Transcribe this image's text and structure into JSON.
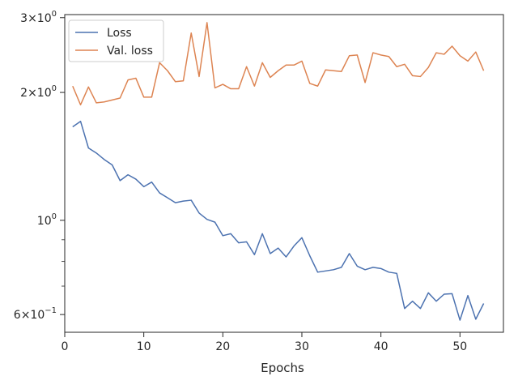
{
  "chart_data": {
    "type": "line",
    "title": "",
    "xlabel": "Epochs",
    "ylabel": "",
    "yscale": "log",
    "xlim": [
      0,
      55.5
    ],
    "ylim": [
      0.545,
      3.05
    ],
    "x_ticks": [
      0,
      10,
      20,
      30,
      40,
      50
    ],
    "y_ticks": [
      {
        "value": 0.6,
        "base": "6",
        "exp": "−1"
      },
      {
        "value": 1.0,
        "base": "10",
        "exp": "0"
      },
      {
        "value": 2.0,
        "base": "2",
        "exp": "0"
      },
      {
        "value": 3.0,
        "base": "3",
        "exp": "0"
      }
    ],
    "grid": false,
    "legend": {
      "position": "top-left"
    },
    "x": [
      1,
      2,
      3,
      4,
      5,
      6,
      7,
      8,
      9,
      10,
      11,
      12,
      13,
      14,
      15,
      16,
      17,
      18,
      19,
      20,
      21,
      22,
      23,
      24,
      25,
      26,
      27,
      28,
      29,
      30,
      31,
      32,
      33,
      34,
      35,
      36,
      37,
      38,
      39,
      40,
      41,
      42,
      43,
      44,
      45,
      46,
      47,
      48,
      49,
      50,
      51,
      52,
      53
    ],
    "series": [
      {
        "name": "Loss",
        "color": "#4c72b0",
        "values": [
          1.66,
          1.71,
          1.48,
          1.44,
          1.39,
          1.35,
          1.24,
          1.28,
          1.25,
          1.2,
          1.23,
          1.16,
          1.13,
          1.1,
          1.11,
          1.115,
          1.04,
          1.005,
          0.99,
          0.92,
          0.93,
          0.885,
          0.89,
          0.83,
          0.93,
          0.835,
          0.86,
          0.82,
          0.87,
          0.91,
          0.825,
          0.755,
          0.76,
          0.765,
          0.775,
          0.835,
          0.78,
          0.765,
          0.775,
          0.77,
          0.755,
          0.75,
          0.62,
          0.645,
          0.62,
          0.675,
          0.645,
          0.67,
          0.672,
          0.582,
          0.665,
          0.585,
          0.637
        ]
      },
      {
        "name": "Val. loss",
        "color": "#dd8452",
        "values": [
          2.07,
          1.87,
          2.06,
          1.89,
          1.9,
          1.92,
          1.94,
          2.14,
          2.16,
          1.95,
          1.95,
          2.35,
          2.25,
          2.12,
          2.13,
          2.76,
          2.18,
          2.92,
          2.05,
          2.09,
          2.04,
          2.04,
          2.3,
          2.07,
          2.35,
          2.17,
          2.25,
          2.32,
          2.32,
          2.37,
          2.1,
          2.07,
          2.26,
          2.25,
          2.24,
          2.44,
          2.45,
          2.11,
          2.48,
          2.45,
          2.43,
          2.3,
          2.33,
          2.19,
          2.18,
          2.29,
          2.48,
          2.46,
          2.57,
          2.44,
          2.37,
          2.49,
          2.25
        ]
      }
    ]
  }
}
